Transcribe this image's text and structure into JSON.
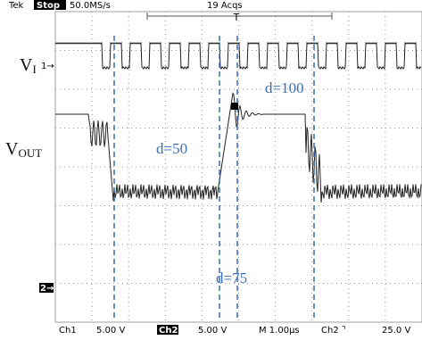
{
  "header": {
    "brand": "Tek",
    "status": "Stop",
    "sample_rate": "50.0MS/s",
    "acquisitions": "19 Acqs"
  },
  "traces": [
    {
      "label": "V",
      "subscript": "I",
      "marker": "1→"
    },
    {
      "label": "V",
      "subscript": "OUT",
      "marker": "2→"
    }
  ],
  "annotations": [
    "d=50",
    "d=100",
    "d=75"
  ],
  "footer": {
    "ch1": "Ch1",
    "ch1_scale": "5.00 V",
    "ch2": "Ch2",
    "ch2_scale": "5.00 V",
    "timebase": "M 1.00µs",
    "trigger_source": "Ch2 ⌝",
    "trigger_level": "25.0 V"
  }
}
